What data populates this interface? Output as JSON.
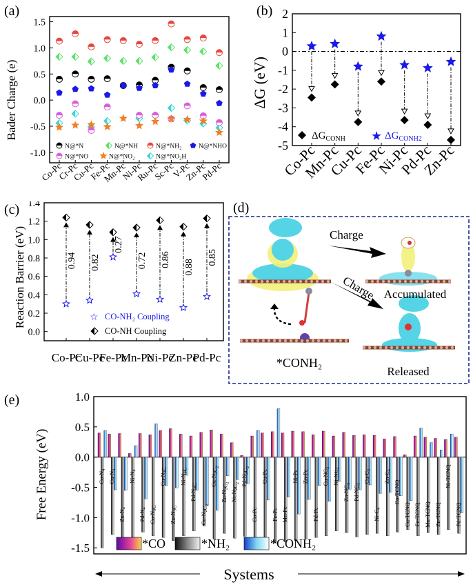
{
  "colors": {
    "red": "#e8473f",
    "green": "#5ee06a",
    "blue": "#1a1ae6",
    "black": "#000000",
    "magenta": "#d95fd9",
    "orange": "#f07f25",
    "cyan": "#3ad8d8",
    "navy": "#1b2a8a",
    "dash_border": "#1b2a8a",
    "iso_cyan": "#55d4e6",
    "iso_yellow": "#f3ef7a"
  },
  "panel_a": {
    "label": "(a)",
    "ylabel": "Bader Charge (e)",
    "ylim": [
      -1.2,
      1.6
    ],
    "yticks": [
      "1.5",
      "1.0",
      "0.5",
      "0.0",
      "-0.5",
      "-1.0"
    ],
    "ytick_values": [
      1.5,
      1.0,
      0.5,
      0.0,
      -0.5,
      -1.0
    ],
    "categories": [
      "Co-Pc",
      "Cr-Pc",
      "Cu-Pc",
      "Fe-Pc",
      "Mn-Pc",
      "Ni-Pc",
      "Ru-Pc",
      "Sc-Pc",
      "V-Pc",
      "Zn-Pc",
      "Pd-Pc"
    ],
    "legend": [
      "N@*N",
      "N@*NH",
      "N@*NH₂",
      "N@*NHO",
      "N@*NO",
      "N@*NO₂",
      "N@*NO₂H"
    ],
    "series": [
      {
        "name": "N@*NH2",
        "marker": "half-red",
        "values": [
          1.13,
          1.27,
          1.02,
          1.16,
          1.14,
          1.07,
          1.14,
          1.46,
          1.16,
          1.19,
          0.91
        ]
      },
      {
        "name": "N@*NH",
        "marker": "half-green",
        "values": [
          0.83,
          0.83,
          0.74,
          0.8,
          0.75,
          0.75,
          0.82,
          1.01,
          0.96,
          0.93,
          0.66
        ]
      },
      {
        "name": "N@*N",
        "marker": "half-black",
        "values": [
          0.4,
          0.5,
          0.4,
          0.41,
          0.28,
          0.29,
          0.38,
          0.63,
          0.56,
          0.24,
          0.2
        ]
      },
      {
        "name": "N@*NHO",
        "marker": "blue-pentagon",
        "values": [
          0.14,
          0.21,
          0.22,
          0.1,
          0.28,
          0.23,
          0.28,
          0.58,
          0.31,
          0.12,
          -0.06
        ]
      },
      {
        "name": "N@*NO2H",
        "marker": "half-cyan",
        "values": [
          -0.44,
          -0.26,
          -0.51,
          -0.4,
          null,
          -0.35,
          -0.29,
          -0.15,
          -0.39,
          -0.45,
          -0.53
        ]
      },
      {
        "name": "N@*NO",
        "marker": "half-magenta",
        "values": [
          -0.29,
          -0.07,
          -0.58,
          -0.13,
          null,
          -0.29,
          -0.29,
          -0.36,
          -0.11,
          -0.3,
          -0.43
        ]
      },
      {
        "name": "N@*NO2",
        "marker": "orange-star",
        "values": [
          -0.52,
          -0.48,
          -0.47,
          -0.51,
          -0.35,
          -0.49,
          -0.41,
          -0.36,
          -0.37,
          -0.4,
          -0.62
        ]
      }
    ]
  },
  "panel_b": {
    "label": "(b)",
    "ylabel": "ΔG (eV)",
    "ylim": [
      -5,
      2
    ],
    "yticks": [
      "2",
      "1",
      "0",
      "-1",
      "-2",
      "-3",
      "-4",
      "-5"
    ],
    "ytick_values": [
      2,
      1,
      0,
      -1,
      -2,
      -3,
      -4,
      -5
    ],
    "categories": [
      "Co-Pc",
      "Mn-Pc",
      "Cu-Pc",
      "Fe-Pc",
      "Ni-Pc",
      "Pd-Pc",
      "Zn-Pc"
    ],
    "series": [
      {
        "name": "ΔG_CONH",
        "values": [
          -2.45,
          -1.75,
          -3.75,
          -1.6,
          -3.65,
          -3.9,
          -4.7
        ]
      },
      {
        "name": "ΔG_CONH2",
        "values": [
          0.28,
          0.4,
          -0.8,
          0.8,
          -0.72,
          -0.88,
          -0.55
        ]
      }
    ],
    "legend_conh_base": "ΔG",
    "legend_conh_sub": "CONH",
    "legend_conh2_base": "ΔG",
    "legend_conh2_sub": "CONH2"
  },
  "panel_c": {
    "label": "(c)",
    "ylabel": "Reaction Barrier (eV)",
    "ylim": [
      -0.1,
      1.4
    ],
    "yticks": [
      "1.4",
      "1.2",
      "1.0",
      "0.8",
      "0.6",
      "0.4",
      "0.2",
      "0.0"
    ],
    "ytick_values": [
      1.4,
      1.2,
      1.0,
      0.8,
      0.6,
      0.4,
      0.2,
      0.0
    ],
    "categories": [
      "Co-Pc",
      "Cu-Pc",
      "Fe-Pc",
      "Mn-Pc",
      "Ni-Pc",
      "Zn-Pc",
      "Pd-Pc"
    ],
    "series": [
      {
        "name": "CO-NH2 Coupling",
        "values": [
          0.3,
          0.34,
          0.81,
          0.41,
          0.35,
          0.26,
          0.38
        ]
      },
      {
        "name": "CO-NH Coupling",
        "values": [
          1.24,
          1.16,
          1.08,
          1.13,
          1.21,
          1.14,
          1.23
        ]
      }
    ],
    "differences": [
      "0.94",
      "0.82",
      "0.27",
      "0.72",
      "0.86",
      "0.88",
      "0.85"
    ],
    "legend_nh2": "CO-NH₂ Coupling",
    "legend_nh": "CO-NH Coupling"
  },
  "panel_d": {
    "label": "(d)",
    "charge_top": "Charge",
    "charge_bottom": "Charge",
    "accumulated": "Accumulated",
    "released": "Released",
    "species": "*CONH₂"
  },
  "panel_e": {
    "label": "(e)",
    "ylabel": "Free Energy (eV)",
    "xlabel": "Systems",
    "ylim": [
      -1.6,
      1.0
    ],
    "yticks": [
      "1.0",
      "0.5",
      "0.0",
      "-0.5",
      "-1.0",
      "-1.5"
    ],
    "ytick_values": [
      1.0,
      0.5,
      0.0,
      -0.5,
      -1.0,
      -1.5
    ],
    "legend": [
      "*CO",
      "*NH₂",
      "*CONH₂"
    ],
    "systems": [
      "Co-N4",
      "Cu-N4",
      "Zn-N4",
      "Ni-N4",
      "Pd-N4",
      "Co-N3C",
      "Cu-N3C",
      "Zn-N3C",
      "Ni-N3C",
      "Pd-N3C",
      "Co-N2C2",
      "Cu-N2C2",
      "Zn-N2C2",
      "Ni-N2C2",
      "Pd-N2C2",
      "Co-Pc",
      "Cu-Pc",
      "Fe-Pc",
      "Mn-Pc",
      "Ni-Pc",
      "Zn-Pc",
      "Pd-Pc",
      "Cu-NC3",
      "Ni-NC3",
      "Zn-NC3",
      "Pd-NC3",
      "Cu-C4",
      "Ni-C4",
      "Zn-C4",
      "Co-TCNQ",
      "Cu-TCNQ",
      "Fe-TCNQ",
      "Mn-TCNQ",
      "Zn-TCNQ",
      "Ni-TCNQ",
      "Pd-TCNQ"
    ],
    "label_row": [
      "top",
      "top",
      "bot",
      "top",
      "bot",
      "bot",
      "top",
      "bot",
      "top",
      "mid",
      "bot",
      "top",
      "mid",
      "mid",
      "top",
      "bot",
      "top",
      "bot",
      "bot",
      "top",
      "top",
      "bot",
      "top",
      "top",
      "mid",
      "mid",
      "top",
      "bot",
      "top",
      "mid",
      "bot",
      "bot",
      "bot",
      "bot",
      "top",
      "bot"
    ],
    "series": [
      {
        "name": "*CO",
        "values": [
          0.4,
          0.38,
          0.39,
          0.06,
          0.39,
          0.37,
          0.44,
          0.47,
          0.38,
          0.35,
          0.41,
          0.45,
          0.38,
          0.24,
          0.03,
          0.35,
          0.4,
          0.42,
          0.4,
          0.43,
          0.42,
          0.37,
          0.43,
          0.35,
          0.41,
          0.36,
          0.37,
          0.36,
          0.3,
          0.34,
          0.04,
          0.35,
          0.33,
          0.31,
          0.29,
          0.33
        ]
      },
      {
        "name": "*NH2",
        "values": [
          -1.5,
          -1.28,
          -1.36,
          -1.4,
          -1.24,
          -1.3,
          -1.33,
          -1.38,
          -1.3,
          -1.22,
          -1.14,
          -1.35,
          -1.26,
          -1.34,
          -1.31,
          -1.38,
          -1.45,
          -1.42,
          -1.4,
          -1.38,
          -1.35,
          -1.33,
          -1.3,
          -1.22,
          -1.25,
          -1.32,
          -1.28,
          -1.26,
          -1.3,
          -1.24,
          -1.2,
          -1.3,
          -1.25,
          -1.28,
          -1.2,
          -1.26
        ]
      },
      {
        "name": "*CONH2",
        "values": [
          0.44,
          -0.54,
          -0.55,
          0.19,
          -0.69,
          0.55,
          -0.47,
          -0.51,
          -0.3,
          -0.55,
          -0.8,
          -0.88,
          -0.31,
          -0.37,
          -0.44,
          0.44,
          -0.71,
          0.8,
          -0.66,
          -0.94,
          -0.7,
          -0.47,
          -0.73,
          -0.4,
          -0.53,
          -0.54,
          -0.46,
          -0.6,
          -0.58,
          -0.64,
          -0.72,
          0.48,
          0.24,
          0.12,
          0.38,
          -0.92
        ]
      }
    ]
  }
}
